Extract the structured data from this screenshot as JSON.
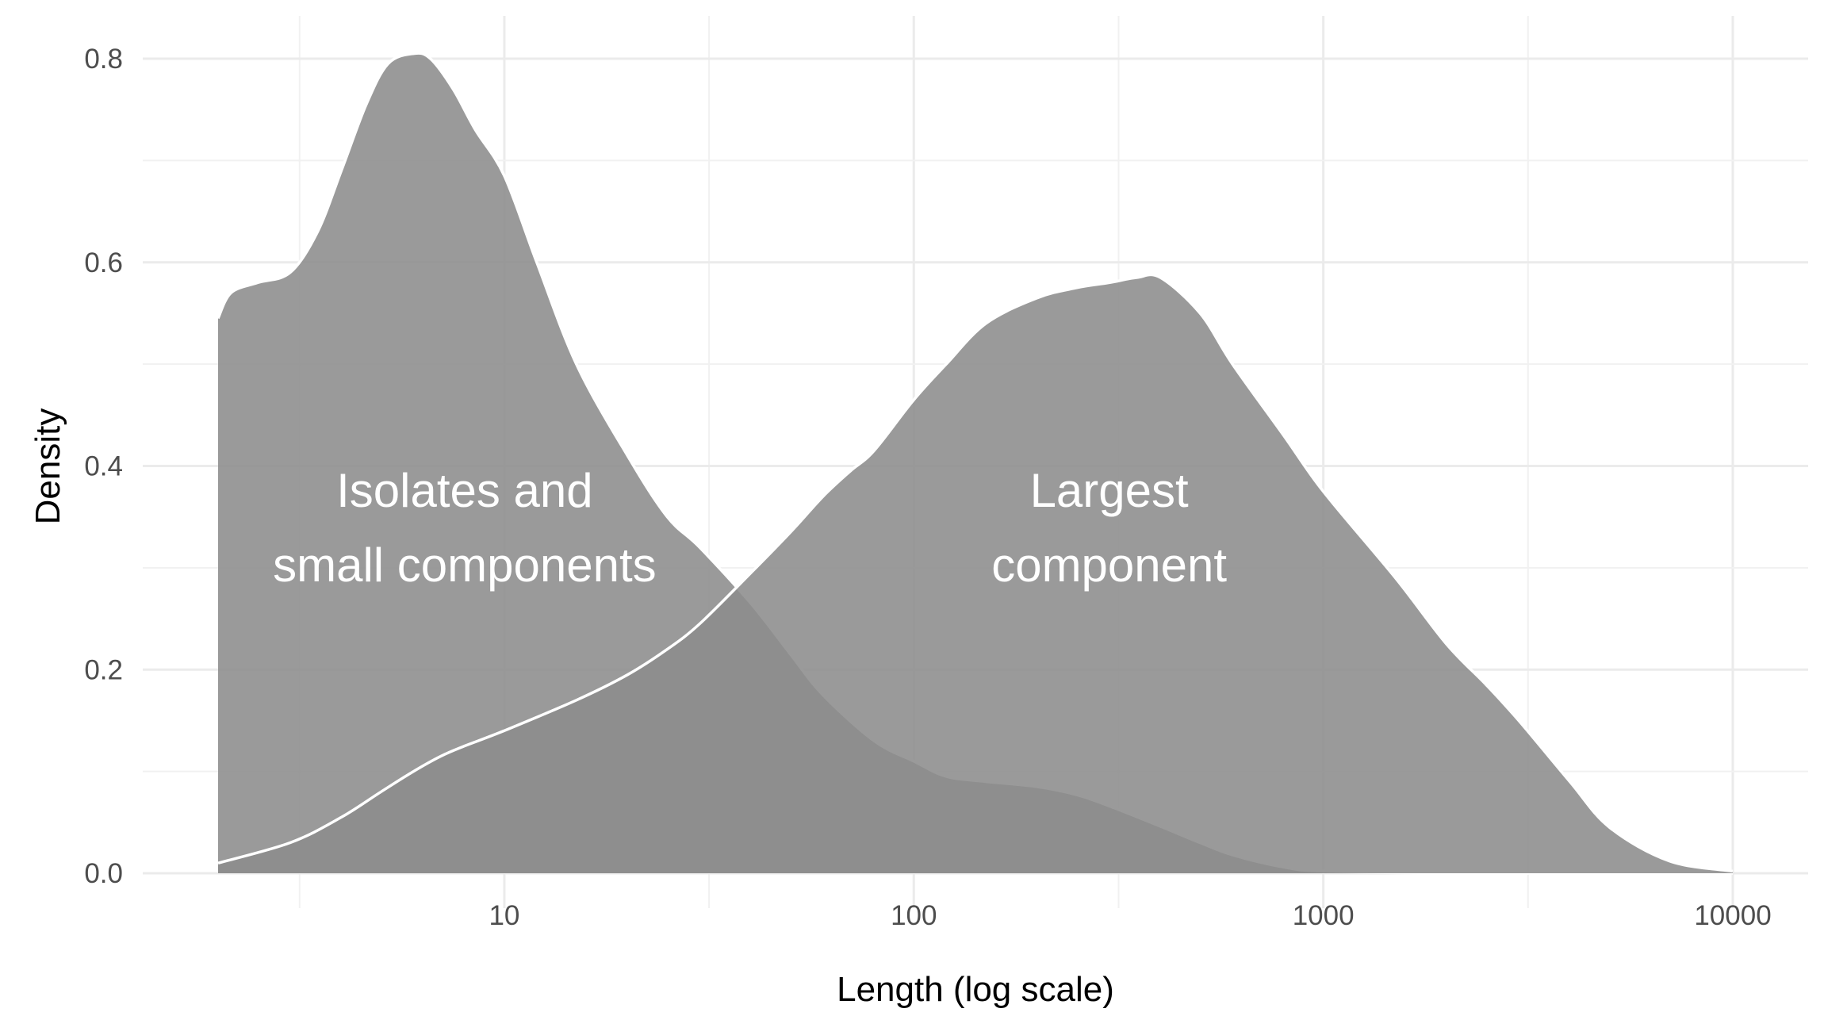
{
  "chart_data": {
    "type": "area",
    "title": "",
    "xlabel": "Length (log scale)",
    "ylabel": "Density",
    "x_scale": "log10",
    "xlim": [
      2,
      10000
    ],
    "ylim": [
      0,
      0.8
    ],
    "x_ticks": [
      10,
      100,
      1000,
      10000
    ],
    "x_tick_labels": [
      "10",
      "100",
      "1000",
      "10000"
    ],
    "y_ticks": [
      0.0,
      0.2,
      0.4,
      0.6,
      0.8
    ],
    "y_tick_labels": [
      "0.0",
      "0.2",
      "0.4",
      "0.6",
      "0.8"
    ],
    "grid": true,
    "legend": "none",
    "annotations": [
      {
        "lines": [
          "Isolates and",
          "small components"
        ],
        "x": 8,
        "y": 0.3
      },
      {
        "lines": [
          "Largest",
          "component"
        ],
        "x": 300,
        "y": 0.3
      }
    ],
    "series": [
      {
        "color": "#8c8c8c",
        "x": [
          2.0,
          2.15,
          2.5,
          3.0,
          3.5,
          4.0,
          4.6,
          5.2,
          6.0,
          6.6,
          7.5,
          8.5,
          10,
          12,
          15,
          20,
          25,
          30,
          40,
          50,
          60,
          80,
          100,
          120,
          150,
          200,
          250,
          300,
          400,
          500,
          600,
          800,
          1000,
          2000,
          10000
        ],
        "y": [
          0.545,
          0.57,
          0.58,
          0.59,
          0.63,
          0.69,
          0.755,
          0.795,
          0.805,
          0.8,
          0.77,
          0.73,
          0.685,
          0.6,
          0.5,
          0.41,
          0.35,
          0.32,
          0.265,
          0.215,
          0.175,
          0.13,
          0.11,
          0.095,
          0.09,
          0.085,
          0.077,
          0.066,
          0.046,
          0.03,
          0.018,
          0.006,
          0.002,
          0.0,
          0.0
        ]
      },
      {
        "color": "#8c8c8c",
        "x": [
          2.0,
          3.0,
          4.0,
          5.0,
          6.0,
          7.0,
          8.0,
          10,
          15,
          20,
          25,
          30,
          40,
          50,
          60,
          70,
          80,
          100,
          120,
          150,
          200,
          250,
          300,
          350,
          400,
          500,
          600,
          800,
          1000,
          1500,
          2000,
          2500,
          3000,
          4000,
          5000,
          7000,
          10000
        ],
        "y": [
          0.01,
          0.03,
          0.055,
          0.08,
          0.1,
          0.115,
          0.125,
          0.14,
          0.17,
          0.195,
          0.22,
          0.245,
          0.295,
          0.335,
          0.37,
          0.395,
          0.415,
          0.465,
          0.5,
          0.54,
          0.565,
          0.575,
          0.58,
          0.585,
          0.585,
          0.55,
          0.5,
          0.43,
          0.375,
          0.29,
          0.225,
          0.185,
          0.15,
          0.09,
          0.045,
          0.012,
          0.002
        ]
      }
    ]
  }
}
